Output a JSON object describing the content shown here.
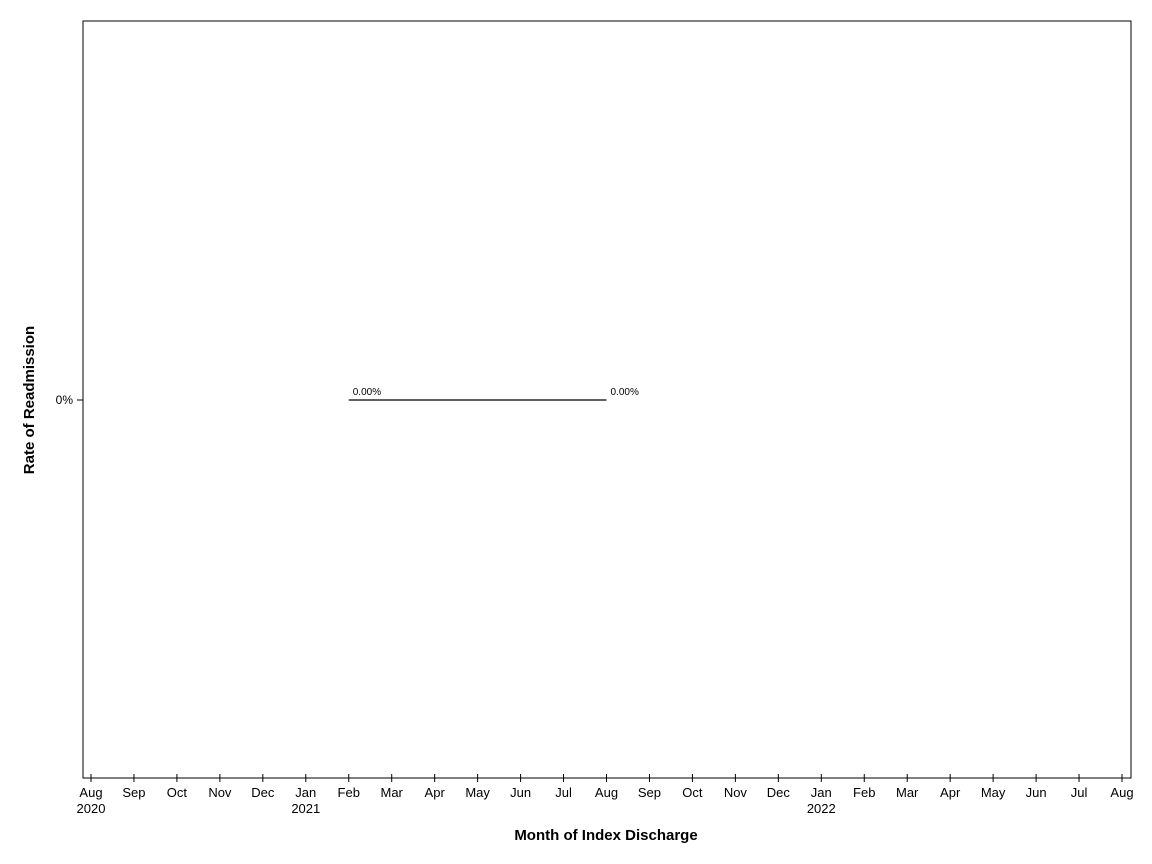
{
  "chart_data": {
    "type": "line",
    "xlabel": "Month of Index Discharge",
    "ylabel": "Rate of Readmission",
    "x_ticks": [
      {
        "date": "2020-08",
        "label": "Aug",
        "year": "2020"
      },
      {
        "date": "2020-09",
        "label": "Sep",
        "year": ""
      },
      {
        "date": "2020-10",
        "label": "Oct",
        "year": ""
      },
      {
        "date": "2020-11",
        "label": "Nov",
        "year": ""
      },
      {
        "date": "2020-12",
        "label": "Dec",
        "year": ""
      },
      {
        "date": "2021-01",
        "label": "Jan",
        "year": "2021"
      },
      {
        "date": "2021-02",
        "label": "Feb",
        "year": ""
      },
      {
        "date": "2021-03",
        "label": "Mar",
        "year": ""
      },
      {
        "date": "2021-04",
        "label": "Apr",
        "year": ""
      },
      {
        "date": "2021-05",
        "label": "May",
        "year": ""
      },
      {
        "date": "2021-06",
        "label": "Jun",
        "year": ""
      },
      {
        "date": "2021-07",
        "label": "Jul",
        "year": ""
      },
      {
        "date": "2021-08",
        "label": "Aug",
        "year": ""
      },
      {
        "date": "2021-09",
        "label": "Sep",
        "year": ""
      },
      {
        "date": "2021-10",
        "label": "Oct",
        "year": ""
      },
      {
        "date": "2021-11",
        "label": "Nov",
        "year": ""
      },
      {
        "date": "2021-12",
        "label": "Dec",
        "year": ""
      },
      {
        "date": "2022-01",
        "label": "Jan",
        "year": "2022"
      },
      {
        "date": "2022-02",
        "label": "Feb",
        "year": ""
      },
      {
        "date": "2022-03",
        "label": "Mar",
        "year": ""
      },
      {
        "date": "2022-04",
        "label": "Apr",
        "year": ""
      },
      {
        "date": "2022-05",
        "label": "May",
        "year": ""
      },
      {
        "date": "2022-06",
        "label": "Jun",
        "year": ""
      },
      {
        "date": "2022-07",
        "label": "Jul",
        "year": ""
      },
      {
        "date": "2022-08",
        "label": "Aug",
        "year": ""
      }
    ],
    "x_range": [
      "2020-08",
      "2022-08"
    ],
    "y_ticks": [
      {
        "value": 0,
        "label": "0%"
      }
    ],
    "series": [
      {
        "points": [
          {
            "x": "2021-02",
            "y": 0,
            "label": "0.00%"
          },
          {
            "x": "2021-08",
            "y": 0,
            "label": "0.00%"
          }
        ],
        "color": "#000000"
      }
    ],
    "grid": false,
    "legend": "none"
  }
}
